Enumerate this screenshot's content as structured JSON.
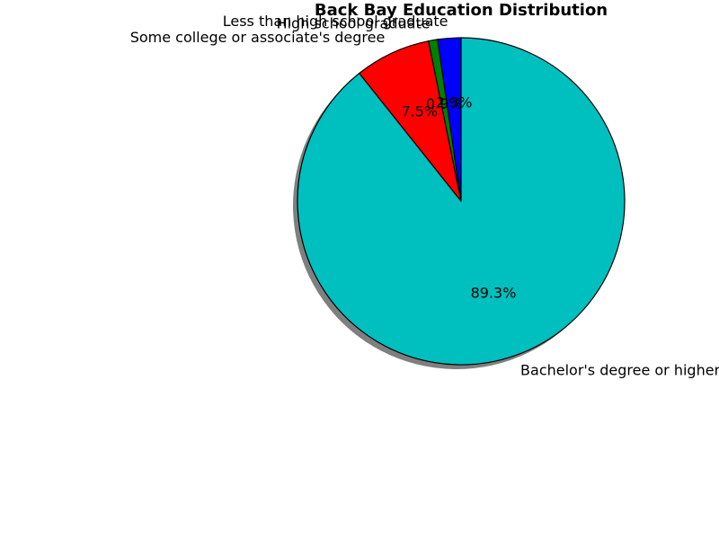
{
  "chart_data": {
    "type": "pie",
    "title": "Back Bay Education Distribution",
    "start_angle_deg": 90,
    "direction": "counterclockwise",
    "shadow": true,
    "slices": [
      {
        "label": "Less than high school graduate",
        "value": 2.3,
        "pct_label": "2.3%",
        "color": "#0000ff"
      },
      {
        "label": "High school graduate",
        "value": 0.9,
        "pct_label": "0.9%",
        "color": "#008000"
      },
      {
        "label": "Some college or associate's degree",
        "value": 7.5,
        "pct_label": "7.5%",
        "color": "#ff0000"
      },
      {
        "label": "Bachelor's degree or higher",
        "value": 89.3,
        "pct_label": "89.3%",
        "color": "#00bfbf"
      }
    ]
  }
}
